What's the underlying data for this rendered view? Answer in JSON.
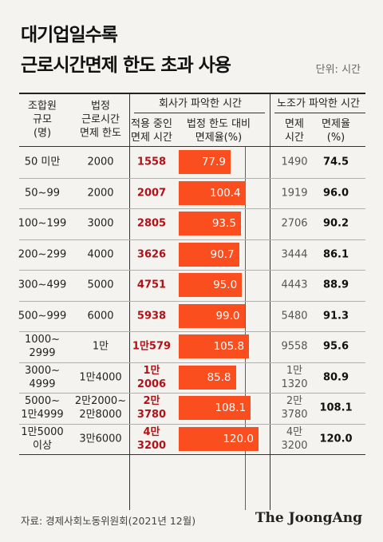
{
  "title_line1": "대기업일수록",
  "title_line2": "근로시간면제 한도 초과 사용",
  "unit": "단위: 시간",
  "headers": {
    "size": "조합원\n규모\n(명)",
    "legal_limit": "법정\n근로시간\n면제 한도",
    "company_group": "회사가 파악한 시간",
    "company_hours": "적용 중인\n면제 시간",
    "company_rate": "법정 한도 대비\n면제율(%)",
    "union_group": "노조가 파악한 시간",
    "union_hours": "면제\n시간",
    "union_rate": "면제율\n(%)"
  },
  "chart_data": {
    "type": "table",
    "bar_column": "company_rate",
    "bar_max": 120.0,
    "reference_value": 100.0,
    "rows": [
      {
        "size": "50 미만",
        "legal_limit": "2000",
        "company_hours": "1558",
        "company_rate": 77.9,
        "company_rate_label": "77.9",
        "union_hours": "1490",
        "union_rate": "74.5"
      },
      {
        "size": "50~99",
        "legal_limit": "2000",
        "company_hours": "2007",
        "company_rate": 100.4,
        "company_rate_label": "100.4",
        "union_hours": "1919",
        "union_rate": "96.0"
      },
      {
        "size": "100~199",
        "legal_limit": "3000",
        "company_hours": "2805",
        "company_rate": 93.5,
        "company_rate_label": "93.5",
        "union_hours": "2706",
        "union_rate": "90.2"
      },
      {
        "size": "200~299",
        "legal_limit": "4000",
        "company_hours": "3626",
        "company_rate": 90.7,
        "company_rate_label": "90.7",
        "union_hours": "3444",
        "union_rate": "86.1"
      },
      {
        "size": "300~499",
        "legal_limit": "5000",
        "company_hours": "4751",
        "company_rate": 95.0,
        "company_rate_label": "95.0",
        "union_hours": "4443",
        "union_rate": "88.9"
      },
      {
        "size": "500~999",
        "legal_limit": "6000",
        "company_hours": "5938",
        "company_rate": 99.0,
        "company_rate_label": "99.0",
        "union_hours": "5480",
        "union_rate": "91.3"
      },
      {
        "size": "1000~\n2999",
        "legal_limit": "1만",
        "company_hours": "1만579",
        "company_rate": 105.8,
        "company_rate_label": "105.8",
        "union_hours": "9558",
        "union_rate": "95.6"
      },
      {
        "size": "3000~\n4999",
        "legal_limit": "1만4000",
        "company_hours": "1만\n2006",
        "company_rate": 85.8,
        "company_rate_label": "85.8",
        "union_hours": "1만\n1320",
        "union_rate": "80.9"
      },
      {
        "size": "5000~\n1만4999",
        "legal_limit": "2만2000~\n2만8000",
        "company_hours": "2만\n3780",
        "company_rate": 108.1,
        "company_rate_label": "108.1",
        "union_hours": "2만\n3780",
        "union_rate": "108.1"
      },
      {
        "size": "1만5000\n이상",
        "legal_limit": "3만6000",
        "company_hours": "4만\n3200",
        "company_rate": 120.0,
        "company_rate_label": "120.0",
        "union_hours": "4만\n3200",
        "union_rate": "120.0"
      }
    ]
  },
  "colors": {
    "bar": "#fb4e1f",
    "company_hours_text": "#b01218",
    "reference_line": "#c0392b"
  },
  "source": "자료: 경제사회노동위원회(2021년 12월)",
  "brand": "The JoongAng"
}
